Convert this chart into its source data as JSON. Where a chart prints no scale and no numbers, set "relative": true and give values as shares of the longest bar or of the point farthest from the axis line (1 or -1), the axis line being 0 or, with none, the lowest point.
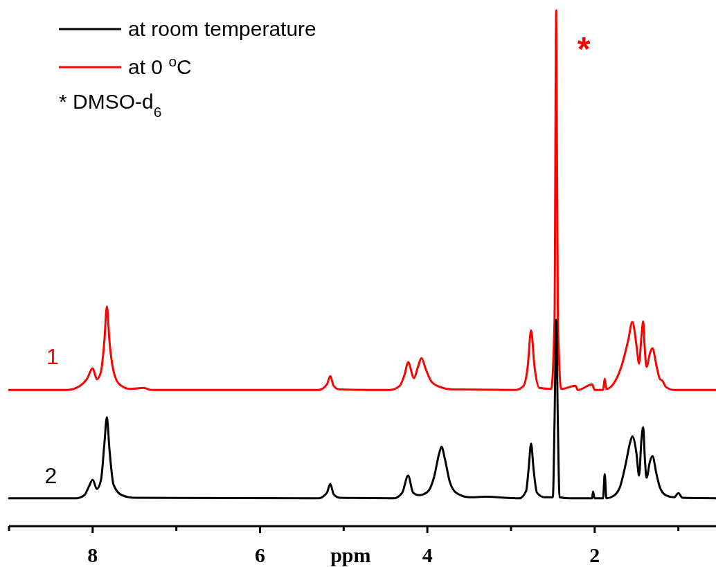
{
  "chart_data": {
    "type": "line",
    "relative": true,
    "xlabel": "ppm",
    "xlim": [
      9,
      0.55
    ],
    "xticks": [
      {
        "value": 9,
        "label": null
      },
      8,
      {
        "value": 7,
        "label": null
      },
      6,
      {
        "value": 5,
        "label": null
      },
      4,
      {
        "value": 3,
        "label": null
      },
      2,
      {
        "value": 1,
        "label": null
      }
    ],
    "legend": "top left",
    "annotations": [
      "* DMSO-d$_{6}$",
      "*",
      "1",
      "2"
    ],
    "series": [
      {
        "name": "at room temperature",
        "color": "#000000",
        "x": [
          9,
          8.2,
          8.1,
          8.05,
          8.0,
          7.95,
          7.9,
          7.86,
          7.83,
          7.8,
          7.75,
          7.65,
          7.5,
          5.3,
          5.2,
          5.16,
          5.12,
          5.05,
          4.4,
          4.3,
          4.23,
          4.17,
          4.1,
          4.0,
          3.92,
          3.86,
          3.83,
          3.79,
          3.73,
          3.65,
          3.5,
          3.3,
          2.9,
          2.82,
          2.79,
          2.76,
          2.73,
          2.69,
          2.6,
          2.5,
          2.48,
          2.46,
          2.44,
          2.42,
          2.3,
          2.03,
          2.02,
          2.0,
          1.9,
          1.88,
          1.86,
          1.78,
          1.7,
          1.63,
          1.58,
          1.55,
          1.5,
          1.47,
          1.44,
          1.42,
          1.4,
          1.38,
          1.34,
          1.31,
          1.26,
          1.22,
          1.15,
          1.05,
          1.0,
          0.95,
          0.55
        ],
        "values": [
          0.054,
          0.054,
          0.06,
          0.075,
          0.09,
          0.072,
          0.09,
          0.16,
          0.211,
          0.15,
          0.08,
          0.06,
          0.055,
          0.054,
          0.065,
          0.082,
          0.062,
          0.055,
          0.054,
          0.065,
          0.098,
          0.065,
          0.06,
          0.066,
          0.095,
          0.14,
          0.154,
          0.13,
          0.085,
          0.064,
          0.056,
          0.057,
          0.054,
          0.068,
          0.11,
          0.16,
          0.11,
          0.065,
          0.056,
          0.056,
          0.2,
          0.4,
          0.2,
          0.056,
          0.054,
          0.054,
          0.067,
          0.054,
          0.054,
          0.101,
          0.054,
          0.058,
          0.075,
          0.12,
          0.16,
          0.174,
          0.14,
          0.098,
          0.17,
          0.192,
          0.13,
          0.094,
          0.125,
          0.136,
          0.1,
          0.075,
          0.06,
          0.056,
          0.064,
          0.055,
          0.054
        ]
      },
      {
        "name": "at 0 $^{o}$C",
        "color": "#ff0000",
        "x": [
          9,
          8.3,
          8.15,
          8.07,
          8.0,
          7.95,
          7.9,
          7.86,
          7.83,
          7.8,
          7.75,
          7.68,
          7.55,
          7.39,
          7.3,
          5.3,
          5.2,
          5.16,
          5.12,
          5.05,
          4.45,
          4.33,
          4.27,
          4.23,
          4.16,
          4.11,
          4.07,
          4.02,
          3.95,
          3.85,
          3.7,
          2.95,
          2.85,
          2.8,
          2.76,
          2.72,
          2.66,
          2.52,
          2.48,
          2.46,
          2.44,
          2.4,
          2.23,
          2.2,
          2.03,
          2.0,
          1.9,
          1.88,
          1.86,
          1.78,
          1.68,
          1.6,
          1.55,
          1.5,
          1.47,
          1.44,
          1.42,
          1.4,
          1.38,
          1.34,
          1.31,
          1.26,
          1.22,
          1.19,
          1.15,
          1.05,
          0.55
        ],
        "values": [
          0.264,
          0.264,
          0.272,
          0.285,
          0.306,
          0.285,
          0.3,
          0.36,
          0.426,
          0.36,
          0.3,
          0.275,
          0.266,
          0.268,
          0.264,
          0.264,
          0.275,
          0.291,
          0.272,
          0.265,
          0.264,
          0.272,
          0.295,
          0.318,
          0.287,
          0.31,
          0.326,
          0.305,
          0.28,
          0.27,
          0.265,
          0.264,
          0.272,
          0.31,
          0.38,
          0.31,
          0.268,
          0.266,
          0.4,
          1,
          0.4,
          0.266,
          0.272,
          0.264,
          0.275,
          0.264,
          0.264,
          0.286,
          0.266,
          0.275,
          0.31,
          0.36,
          0.396,
          0.35,
          0.315,
          0.37,
          0.397,
          0.34,
          0.309,
          0.335,
          0.345,
          0.31,
          0.285,
          0.282,
          0.27,
          0.264,
          0.264
        ]
      }
    ]
  }
}
